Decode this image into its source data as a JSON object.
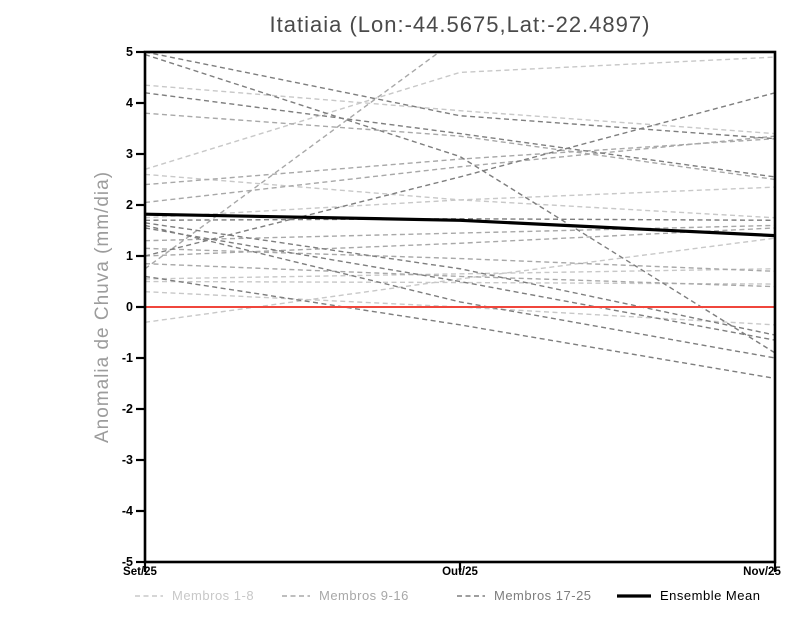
{
  "chart_data": {
    "type": "line",
    "title": "Itatiaia (Lon:-44.5675,Lat:-22.4897)",
    "ylabel": "Anomalia de Chuva (mm/dia)",
    "x_categories": [
      "Set/25",
      "Out/25",
      "Nov/25"
    ],
    "ylim": [
      -5,
      5
    ],
    "y_ticks": [
      5,
      4,
      3,
      2,
      1,
      0,
      -1,
      -2,
      -3,
      -4,
      -5
    ],
    "grid": false,
    "legend_position": "bottom",
    "zero_line": {
      "value": 0,
      "color": "#f0463c"
    },
    "axis_color": "#000000",
    "groups": [
      {
        "name": "Membros 1-8",
        "color": "#c8c8c8",
        "style": "dashed"
      },
      {
        "name": "Membros 9-16",
        "color": "#a8a8a8",
        "style": "dashed"
      },
      {
        "name": "Membros 17-25",
        "color": "#7e7e7e",
        "style": "dashed"
      },
      {
        "name": "Ensemble Mean",
        "color": "#000000",
        "style": "solid"
      }
    ],
    "members": [
      {
        "group": 0,
        "values": [
          2.7,
          4.6,
          4.9
        ]
      },
      {
        "group": 0,
        "values": [
          4.35,
          3.85,
          3.4
        ]
      },
      {
        "group": 0,
        "values": [
          2.6,
          2.1,
          1.75
        ]
      },
      {
        "group": 0,
        "values": [
          1.75,
          2.1,
          2.35
        ]
      },
      {
        "group": 0,
        "values": [
          0.55,
          0.65,
          0.75
        ]
      },
      {
        "group": 0,
        "values": [
          0.5,
          0.48,
          0.45
        ]
      },
      {
        "group": 0,
        "values": [
          0.3,
          0.0,
          -0.35
        ]
      },
      {
        "group": 0,
        "values": [
          -0.3,
          0.55,
          1.35
        ]
      },
      {
        "group": 1,
        "values": [
          3.8,
          3.35,
          2.5
        ]
      },
      {
        "group": 1,
        "values": [
          2.4,
          2.9,
          3.3
        ]
      },
      {
        "group": 1,
        "values": [
          0.75,
          5.3,
          5.5
        ]
      },
      {
        "group": 1,
        "values": [
          2.05,
          2.75,
          3.35
        ]
      },
      {
        "group": 1,
        "values": [
          1.3,
          1.45,
          1.6
        ]
      },
      {
        "group": 1,
        "values": [
          1.15,
          0.95,
          0.7
        ]
      },
      {
        "group": 1,
        "values": [
          1.0,
          1.25,
          1.55
        ]
      },
      {
        "group": 1,
        "values": [
          0.85,
          0.6,
          0.4
        ]
      },
      {
        "group": 2,
        "values": [
          5.0,
          3.75,
          3.3
        ]
      },
      {
        "group": 2,
        "values": [
          4.2,
          3.4,
          2.55
        ]
      },
      {
        "group": 2,
        "values": [
          4.95,
          2.95,
          -0.9
        ]
      },
      {
        "group": 2,
        "values": [
          1.0,
          2.55,
          4.2
        ]
      },
      {
        "group": 2,
        "values": [
          1.7,
          1.73,
          1.7
        ]
      },
      {
        "group": 2,
        "values": [
          1.65,
          0.75,
          -0.55
        ]
      },
      {
        "group": 2,
        "values": [
          1.55,
          0.5,
          -0.65
        ]
      },
      {
        "group": 2,
        "values": [
          1.6,
          0.1,
          -1.0
        ]
      },
      {
        "group": 2,
        "values": [
          0.6,
          -0.35,
          -1.4
        ]
      }
    ],
    "ensemble_mean": [
      1.82,
      1.7,
      1.4
    ]
  }
}
